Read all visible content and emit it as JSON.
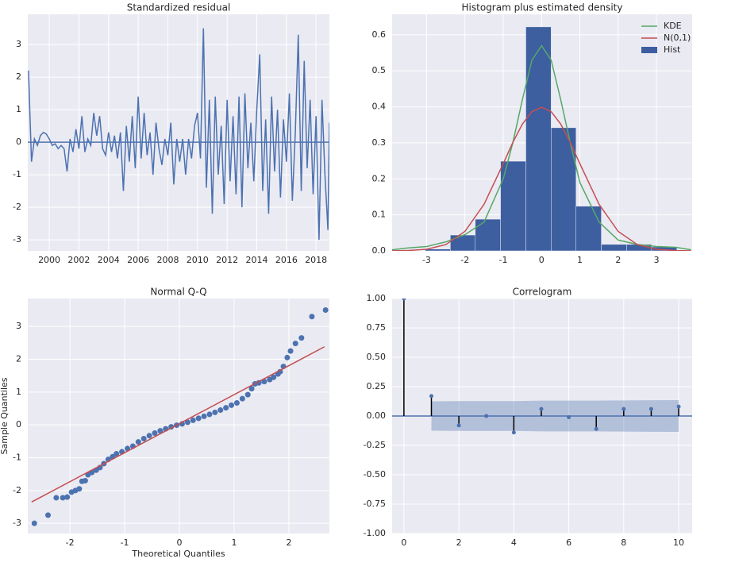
{
  "chart_data": [
    {
      "type": "line",
      "title": "Standardized residual",
      "color": "#4c72b0",
      "grid": true,
      "hline": 0,
      "x": [
        1998.6,
        1998.8,
        1999.0,
        1999.2,
        1999.4,
        1999.6,
        1999.8,
        2000.0,
        2000.2,
        2000.4,
        2000.6,
        2000.8,
        2001.0,
        2001.2,
        2001.4,
        2001.6,
        2001.8,
        2002.0,
        2002.2,
        2002.4,
        2002.6,
        2002.8,
        2003.0,
        2003.2,
        2003.4,
        2003.6,
        2003.8,
        2004.0,
        2004.2,
        2004.4,
        2004.6,
        2004.8,
        2005.0,
        2005.2,
        2005.4,
        2005.6,
        2005.8,
        2006.0,
        2006.2,
        2006.4,
        2006.6,
        2006.8,
        2007.0,
        2007.2,
        2007.4,
        2007.6,
        2007.8,
        2008.0,
        2008.2,
        2008.4,
        2008.6,
        2008.8,
        2009.0,
        2009.2,
        2009.4,
        2009.6,
        2009.8,
        2010.0,
        2010.2,
        2010.4,
        2010.6,
        2010.8,
        2011.0,
        2011.2,
        2011.4,
        2011.6,
        2011.8,
        2012.0,
        2012.2,
        2012.4,
        2012.6,
        2012.8,
        2013.0,
        2013.2,
        2013.4,
        2013.6,
        2013.8,
        2014.0,
        2014.2,
        2014.4,
        2014.6,
        2014.8,
        2015.0,
        2015.2,
        2015.4,
        2015.6,
        2015.8,
        2016.0,
        2016.2,
        2016.4,
        2016.6,
        2016.8,
        2017.0,
        2017.2,
        2017.4,
        2017.6,
        2017.8,
        2018.0,
        2018.2,
        2018.4,
        2018.6,
        2018.8,
        2018.9
      ],
      "values": [
        2.2,
        -0.6,
        0.1,
        -0.1,
        0.2,
        0.3,
        0.25,
        0.1,
        -0.1,
        -0.05,
        -0.2,
        -0.1,
        -0.2,
        -0.9,
        0.1,
        -0.3,
        0.4,
        -0.2,
        0.8,
        -0.3,
        0.1,
        -0.1,
        0.9,
        0.2,
        0.8,
        -0.2,
        -0.4,
        0.3,
        -0.3,
        0.2,
        -0.5,
        0.3,
        -1.5,
        0.5,
        -0.6,
        0.8,
        -0.8,
        1.4,
        -0.5,
        0.9,
        -0.4,
        0.3,
        -1.0,
        0.6,
        -0.2,
        -0.7,
        0.1,
        -0.4,
        0.6,
        -1.3,
        0.1,
        -0.6,
        0.1,
        -1.0,
        0.1,
        -0.5,
        0.5,
        0.9,
        -0.5,
        3.5,
        -1.4,
        1.3,
        -2.2,
        1.4,
        -1.0,
        0.5,
        -1.9,
        1.3,
        -1.2,
        0.8,
        -1.6,
        1.4,
        -2.0,
        1.5,
        -0.8,
        0.6,
        -1.2,
        1.0,
        2.7,
        -1.5,
        0.7,
        -2.2,
        1.4,
        -0.9,
        1.0,
        -1.7,
        0.7,
        -0.6,
        1.5,
        -1.8,
        0.3,
        3.3,
        -1.5,
        2.5,
        -0.8,
        1.3,
        -1.6,
        0.8,
        -3.0,
        1.3,
        -1.0,
        -2.7,
        0.6
      ],
      "xlim": [
        1998.55,
        2018.9
      ],
      "xticks": [
        2000,
        2002,
        2004,
        2006,
        2008,
        2010,
        2012,
        2014,
        2016,
        2018
      ],
      "ylim": [
        -3.34,
        3.93
      ],
      "yticks": [
        -3,
        -2,
        -1,
        0,
        1,
        2,
        3
      ]
    },
    {
      "type": "histogram",
      "title": "Histogram plus estimated density",
      "grid": true,
      "legend": "upper right",
      "x": [
        -3.9,
        -3.5,
        -3,
        -2.5,
        -2,
        -1.5,
        -1,
        -0.75,
        -0.5,
        -0.25,
        0,
        0.25,
        0.5,
        0.75,
        1,
        1.5,
        2,
        2.5,
        3,
        3.5,
        3.9
      ],
      "series": [
        {
          "name": "KDE",
          "color": "#55a868",
          "values": [
            0.003,
            0.008,
            0.012,
            0.025,
            0.045,
            0.08,
            0.2,
            0.3,
            0.42,
            0.53,
            0.57,
            0.53,
            0.42,
            0.3,
            0.19,
            0.08,
            0.03,
            0.018,
            0.012,
            0.01,
            0.003
          ]
        },
        {
          "name": "N(0,1)",
          "color": "#c44e52",
          "values": [
            0.0002,
            0.0009,
            0.0044,
            0.0175,
            0.054,
            0.1295,
            0.242,
            0.3011,
            0.3521,
            0.3867,
            0.3989,
            0.3867,
            0.3521,
            0.3011,
            0.242,
            0.1295,
            0.054,
            0.0175,
            0.0044,
            0.0009,
            0.0002
          ]
        }
      ],
      "hist": {
        "name": "Hist",
        "color": "#3d5fa0",
        "bins": [
          -3.04,
          -2.38,
          -1.73,
          -1.07,
          -0.41,
          0.25,
          0.9,
          1.56,
          2.22,
          2.87,
          3.53
        ],
        "values": [
          0.005,
          0.044,
          0.088,
          0.249,
          0.622,
          0.342,
          0.124,
          0.018,
          0.018,
          0.011
        ]
      },
      "xlim": [
        -3.9,
        3.93
      ],
      "xticks": [
        -3,
        -2,
        -1,
        0,
        1,
        2,
        3
      ],
      "ylim": [
        0,
        0.657
      ],
      "yticks": [
        {
          "value": 0,
          "label": "0.0"
        },
        0.1,
        0.2,
        0.3,
        0.4,
        0.5,
        0.6
      ]
    },
    {
      "type": "scatter",
      "title": "Normal Q-Q",
      "xlabel": "Theoretical Quantiles",
      "ylabel": "Sample Quantiles",
      "color": "#4c72b0",
      "grid": true,
      "x": [
        -2.65,
        -2.4,
        -2.25,
        -2.13,
        -2.05,
        -1.97,
        -1.9,
        -1.83,
        -1.78,
        -1.72,
        -1.67,
        -1.6,
        -1.52,
        -1.45,
        -1.38,
        -1.3,
        -1.22,
        -1.15,
        -1.05,
        -0.95,
        -0.85,
        -0.75,
        -0.65,
        -0.55,
        -0.45,
        -0.35,
        -0.25,
        -0.15,
        -0.05,
        0.05,
        0.15,
        0.25,
        0.35,
        0.45,
        0.55,
        0.65,
        0.75,
        0.85,
        0.95,
        1.05,
        1.15,
        1.25,
        1.32,
        1.38,
        1.45,
        1.55,
        1.65,
        1.72,
        1.8,
        1.84,
        1.9,
        1.97,
        2.03,
        2.12,
        2.23,
        2.42,
        2.67
      ],
      "values": [
        -3.0,
        -2.75,
        -2.22,
        -2.22,
        -2.2,
        -2.05,
        -2.0,
        -1.95,
        -1.72,
        -1.7,
        -1.52,
        -1.45,
        -1.38,
        -1.3,
        -1.18,
        -1.05,
        -0.97,
        -0.88,
        -0.82,
        -0.72,
        -0.65,
        -0.52,
        -0.42,
        -0.33,
        -0.25,
        -0.18,
        -0.12,
        -0.06,
        -0.01,
        0.03,
        0.08,
        0.14,
        0.2,
        0.26,
        0.32,
        0.38,
        0.45,
        0.52,
        0.6,
        0.67,
        0.8,
        0.92,
        1.1,
        1.25,
        1.28,
        1.32,
        1.38,
        1.45,
        1.55,
        1.62,
        1.78,
        2.05,
        2.25,
        2.48,
        2.65,
        3.3,
        3.5
      ],
      "line": {
        "color": "#c44e52",
        "x": [
          -2.7,
          2.65
        ],
        "values": [
          -2.35,
          2.38
        ]
      },
      "xlim": [
        -2.77,
        2.74
      ],
      "xticks": [
        -2,
        -1,
        0,
        1,
        2
      ],
      "ylim": [
        -3.31,
        3.85
      ],
      "yticks": [
        -3,
        -2,
        -1,
        0,
        1,
        2,
        3
      ]
    },
    {
      "type": "stem",
      "title": "Correlogram",
      "color": "#000000",
      "marker_color": "#4c72b0",
      "band_color": "#4c72b0",
      "grid": true,
      "hline": 0,
      "x": [
        0,
        1,
        2,
        3,
        4,
        5,
        6,
        7,
        8,
        9,
        10
      ],
      "values": [
        1.0,
        0.17,
        -0.08,
        0.0,
        -0.14,
        0.06,
        -0.01,
        -0.11,
        0.06,
        0.06,
        0.08
      ],
      "confint": [
        null,
        0.125,
        0.127,
        0.127,
        0.127,
        0.131,
        0.131,
        0.131,
        0.133,
        0.134,
        0.135
      ],
      "xlim": [
        -0.43,
        10.49
      ],
      "xticks": [
        0,
        2,
        4,
        6,
        8,
        10
      ],
      "ylim": [
        -1,
        1
      ],
      "yticks": [
        {
          "value": -1,
          "label": "-1.00"
        },
        -0.75,
        {
          "value": -0.5,
          "label": "-0.50"
        },
        -0.25,
        {
          "value": 0,
          "label": "0.00"
        },
        0.25,
        {
          "value": 0.5,
          "label": "0.50"
        },
        0.75,
        {
          "value": 1,
          "label": "1.00"
        }
      ]
    }
  ]
}
